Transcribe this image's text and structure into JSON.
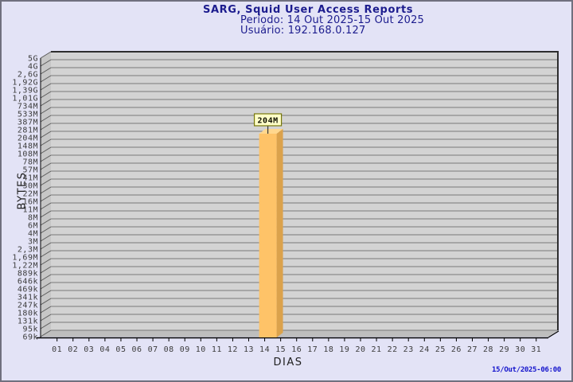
{
  "header": {
    "title": "SARG, Squid User Access Reports",
    "period": "Período: 14 Out 2025-15 Out 2025",
    "user": "Usuário: 192.168.0.127"
  },
  "footer": {
    "generated": "15/Out/2025-06:00"
  },
  "chart_data": {
    "type": "bar",
    "title": "SARG, Squid User Access Reports",
    "subtitle_period": "Período: 14 Out 2025-15 Out 2025",
    "subtitle_user": "Usuário: 192.168.0.127",
    "xlabel": "DIAS",
    "ylabel": "BYTES",
    "y_axis_scale": "logarithmic",
    "grid": "horizontal",
    "legend": "none",
    "y_tick_labels": [
      "5G",
      "4G",
      "2,6G",
      "1,92G",
      "1,39G",
      "1,01G",
      "734M",
      "533M",
      "387M",
      "281M",
      "204M",
      "148M",
      "108M",
      "78M",
      "57M",
      "41M",
      "30M",
      "22M",
      "16M",
      "11M",
      "8M",
      "6M",
      "4M",
      "3M",
      "2,3M",
      "1,69M",
      "1,22M",
      "889k",
      "646k",
      "469k",
      "341k",
      "247k",
      "180k",
      "131k",
      "95k",
      "69k"
    ],
    "categories": [
      "01",
      "02",
      "03",
      "04",
      "05",
      "06",
      "07",
      "08",
      "09",
      "10",
      "11",
      "12",
      "13",
      "14",
      "15",
      "16",
      "17",
      "18",
      "19",
      "20",
      "21",
      "22",
      "23",
      "24",
      "25",
      "26",
      "27",
      "28",
      "29",
      "30",
      "31"
    ],
    "bars": [
      {
        "day": "14",
        "value_label": "204M"
      }
    ]
  },
  "colors": {
    "page_bg": "#E3E3F6",
    "page_border": "#70707E",
    "title_text": "#1C1C8E",
    "plot_bg": "#D3D3D3",
    "wall": "#C6C6C6",
    "floor": "#BEBEBE",
    "gridline": "#7A7A7A",
    "frame": "#2E2E2E",
    "axis": "#000000",
    "tick_text": "#3C3C3C",
    "bar_front": "#FEC368",
    "bar_side": "#DBA24C",
    "bar_top": "#FFD78E",
    "callout_bg": "#FFFFC8",
    "callout_border": "#77770A",
    "timestamp_text": "#1414CC"
  }
}
